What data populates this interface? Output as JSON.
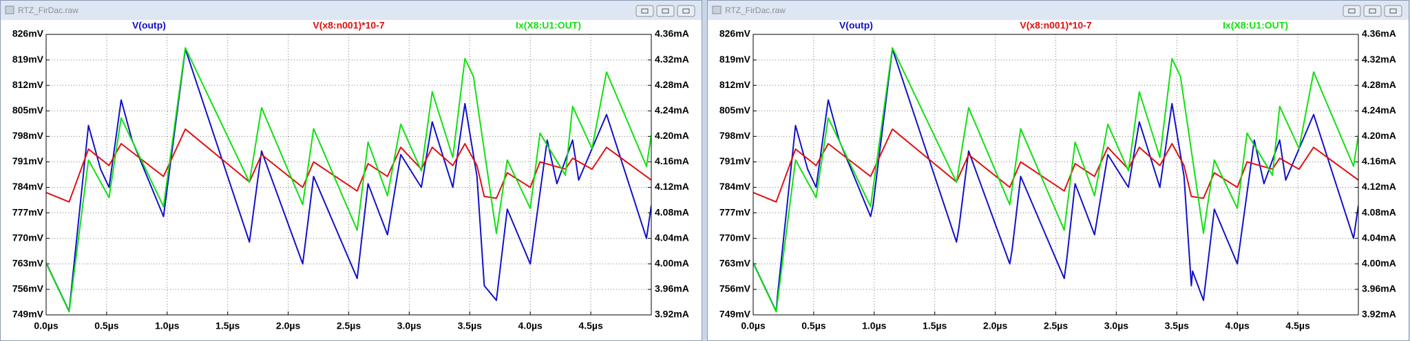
{
  "chart_data": [
    {
      "type": "line",
      "window_title": "RTZ_FirDac.raw",
      "xlim": [
        0,
        5
      ],
      "ylim": [
        749,
        826
      ],
      "y2lim": [
        3.92,
        4.36
      ],
      "xticks": [
        {
          "value": 0,
          "label": "0.0µs"
        },
        {
          "value": 0.5,
          "label": "0.5µs"
        },
        {
          "value": 1,
          "label": "1.0µs"
        },
        {
          "value": 1.5,
          "label": "1.5µs"
        },
        {
          "value": 2,
          "label": "2.0µs"
        },
        {
          "value": 2.5,
          "label": "2.5µs"
        },
        {
          "value": 3,
          "label": "3.0µs"
        },
        {
          "value": 3.5,
          "label": "3.5µs"
        },
        {
          "value": 4,
          "label": "4.0µs"
        },
        {
          "value": 4.5,
          "label": "4.5µs"
        }
      ],
      "yticks": [
        {
          "value": 749,
          "label": "749mV"
        },
        {
          "value": 756,
          "label": "756mV"
        },
        {
          "value": 763,
          "label": "763mV"
        },
        {
          "value": 770,
          "label": "770mV"
        },
        {
          "value": 777,
          "label": "777mV"
        },
        {
          "value": 784,
          "label": "784mV"
        },
        {
          "value": 791,
          "label": "791mV"
        },
        {
          "value": 798,
          "label": "798mV"
        },
        {
          "value": 805,
          "label": "805mV"
        },
        {
          "value": 812,
          "label": "812mV"
        },
        {
          "value": 819,
          "label": "819mV"
        },
        {
          "value": 826,
          "label": "826mV"
        }
      ],
      "y2ticks": [
        {
          "value": 3.92,
          "label": "3.92mA"
        },
        {
          "value": 3.96,
          "label": "3.96mA"
        },
        {
          "value": 4.0,
          "label": "4.00mA"
        },
        {
          "value": 4.04,
          "label": "4.04mA"
        },
        {
          "value": 4.08,
          "label": "4.08mA"
        },
        {
          "value": 4.12,
          "label": "4.12mA"
        },
        {
          "value": 4.16,
          "label": "4.16mA"
        },
        {
          "value": 4.2,
          "label": "4.20mA"
        },
        {
          "value": 4.24,
          "label": "4.24mA"
        },
        {
          "value": 4.28,
          "label": "4.28mA"
        },
        {
          "value": 4.32,
          "label": "4.32mA"
        },
        {
          "value": 4.36,
          "label": "4.36mA"
        }
      ],
      "grid": true,
      "series": [
        {
          "name": "V(outp)",
          "color": "#1010cc",
          "x": [
            0,
            0.19,
            0.35,
            0.45,
            0.52,
            0.62,
            0.71,
            0.97,
            1.15,
            1.68,
            1.78,
            2.12,
            2.21,
            2.57,
            2.66,
            2.82,
            2.93,
            3.1,
            3.19,
            3.36,
            3.46,
            3.56,
            3.62,
            3.72,
            3.81,
            4.0,
            4.14,
            4.22,
            4.35,
            4.4,
            4.63,
            4.96,
            5.0
          ],
          "values": [
            763.3,
            750,
            801,
            789,
            784,
            808,
            797,
            776,
            822,
            769,
            794,
            763,
            787,
            759,
            785,
            771,
            793,
            784,
            802,
            784,
            807,
            787,
            757,
            753,
            778,
            763,
            797,
            785,
            797,
            786,
            804,
            770,
            779
          ]
        },
        {
          "name": "V(x8:n001)*10-7",
          "color": "#e01010",
          "x": [
            0,
            0.19,
            0.35,
            0.52,
            0.62,
            0.97,
            1.15,
            1.68,
            1.78,
            2.12,
            2.21,
            2.57,
            2.66,
            2.82,
            2.93,
            3.1,
            3.19,
            3.36,
            3.46,
            3.56,
            3.62,
            3.72,
            3.81,
            4.0,
            4.08,
            4.29,
            4.35,
            4.51,
            4.63,
            5.0
          ],
          "values": [
            782.6,
            780,
            794.5,
            790,
            796,
            787,
            800,
            785.5,
            793,
            784,
            791,
            783,
            790.5,
            787,
            795,
            789,
            795,
            790,
            796,
            790,
            781.5,
            781,
            788,
            784,
            791,
            789,
            792,
            789,
            795,
            786
          ]
        },
        {
          "name": "Ix(X8:U1:OUT)",
          "color": "#10e010",
          "axis": "y2",
          "x": [
            0,
            0.19,
            0.35,
            0.52,
            0.62,
            0.97,
            1.15,
            1.68,
            1.78,
            2.12,
            2.21,
            2.57,
            2.66,
            2.82,
            2.93,
            3.1,
            3.19,
            3.36,
            3.46,
            3.53,
            3.72,
            3.81,
            4.0,
            4.08,
            4.29,
            4.35,
            4.51,
            4.63,
            4.96,
            5.0
          ],
          "values": [
            4.001,
            3.925,
            4.163,
            4.104,
            4.229,
            4.09,
            4.339,
            4.128,
            4.245,
            4.093,
            4.212,
            4.053,
            4.191,
            4.107,
            4.219,
            4.146,
            4.27,
            4.167,
            4.322,
            4.294,
            4.048,
            4.163,
            4.087,
            4.205,
            4.139,
            4.247,
            4.181,
            4.301,
            4.153,
            4.202
          ]
        }
      ]
    },
    {
      "type": "line",
      "window_title": "RTZ_FirDac.raw",
      "xlim": [
        0,
        5
      ],
      "ylim": [
        749,
        826
      ],
      "y2lim": [
        3.92,
        4.36
      ],
      "xticks": [
        {
          "value": 0,
          "label": "0.0µs"
        },
        {
          "value": 0.5,
          "label": "0.5µs"
        },
        {
          "value": 1,
          "label": "1.0µs"
        },
        {
          "value": 1.5,
          "label": "1.5µs"
        },
        {
          "value": 2,
          "label": "2.0µs"
        },
        {
          "value": 2.5,
          "label": "2.5µs"
        },
        {
          "value": 3,
          "label": "3.0µs"
        },
        {
          "value": 3.5,
          "label": "3.5µs"
        },
        {
          "value": 4,
          "label": "4.0µs"
        },
        {
          "value": 4.5,
          "label": "4.5µs"
        }
      ],
      "yticks": [
        {
          "value": 749,
          "label": "749mV"
        },
        {
          "value": 756,
          "label": "756mV"
        },
        {
          "value": 763,
          "label": "763mV"
        },
        {
          "value": 770,
          "label": "770mV"
        },
        {
          "value": 777,
          "label": "777mV"
        },
        {
          "value": 784,
          "label": "784mV"
        },
        {
          "value": 791,
          "label": "791mV"
        },
        {
          "value": 798,
          "label": "798mV"
        },
        {
          "value": 805,
          "label": "805mV"
        },
        {
          "value": 812,
          "label": "812mV"
        },
        {
          "value": 819,
          "label": "819mV"
        },
        {
          "value": 826,
          "label": "826mV"
        }
      ],
      "y2ticks": [
        {
          "value": 3.92,
          "label": "3.92mA"
        },
        {
          "value": 3.96,
          "label": "3.96mA"
        },
        {
          "value": 4.0,
          "label": "4.00mA"
        },
        {
          "value": 4.04,
          "label": "4.04mA"
        },
        {
          "value": 4.08,
          "label": "4.08mA"
        },
        {
          "value": 4.12,
          "label": "4.12mA"
        },
        {
          "value": 4.16,
          "label": "4.16mA"
        },
        {
          "value": 4.2,
          "label": "4.20mA"
        },
        {
          "value": 4.24,
          "label": "4.24mA"
        },
        {
          "value": 4.28,
          "label": "4.28mA"
        },
        {
          "value": 4.32,
          "label": "4.32mA"
        },
        {
          "value": 4.36,
          "label": "4.36mA"
        }
      ],
      "grid": true,
      "series": [
        {
          "name": "V(outp)",
          "color": "#1010cc",
          "x": [
            0,
            0.19,
            0.2,
            0.35,
            0.45,
            0.52,
            0.62,
            0.71,
            0.97,
            0.99,
            1.15,
            1.68,
            1.7,
            1.78,
            2.12,
            2.14,
            2.21,
            2.57,
            2.59,
            2.66,
            2.82,
            2.93,
            3.1,
            3.19,
            3.36,
            3.46,
            3.56,
            3.62,
            3.63,
            3.72,
            3.81,
            4.0,
            4.14,
            4.22,
            4.35,
            4.4,
            4.63,
            4.96,
            5.0
          ],
          "values": [
            763.3,
            750,
            754,
            801,
            789,
            784,
            808,
            797,
            776,
            779,
            822,
            769,
            773,
            794,
            763,
            767,
            787,
            759,
            764,
            785,
            771,
            793,
            784,
            802,
            784,
            807,
            787,
            757,
            761,
            753,
            778,
            763,
            797,
            785,
            797,
            786,
            804,
            770,
            779
          ]
        },
        {
          "name": "V(x8:n001)*10-7",
          "color": "#e01010",
          "x": [
            0,
            0.19,
            0.35,
            0.52,
            0.62,
            0.97,
            1.15,
            1.68,
            1.78,
            2.12,
            2.21,
            2.57,
            2.66,
            2.82,
            2.93,
            3.1,
            3.19,
            3.36,
            3.46,
            3.56,
            3.62,
            3.72,
            3.81,
            4.0,
            4.08,
            4.29,
            4.35,
            4.51,
            4.63,
            5.0
          ],
          "values": [
            782.6,
            780,
            794.5,
            790,
            796,
            787,
            800,
            785.5,
            793,
            784,
            791,
            783,
            790.5,
            787,
            795,
            789,
            795,
            790,
            796,
            790,
            781.5,
            781,
            788,
            784,
            791,
            789,
            792,
            789,
            795,
            786
          ]
        },
        {
          "name": "Ix(X8:U1:OUT)",
          "color": "#10e010",
          "axis": "y2",
          "x": [
            0,
            0.19,
            0.35,
            0.52,
            0.62,
            0.97,
            1.15,
            1.68,
            1.78,
            2.12,
            2.21,
            2.57,
            2.66,
            2.82,
            2.93,
            3.1,
            3.19,
            3.36,
            3.46,
            3.53,
            3.72,
            3.81,
            4.0,
            4.08,
            4.29,
            4.35,
            4.51,
            4.63,
            4.96,
            5.0
          ],
          "values": [
            4.001,
            3.925,
            4.163,
            4.104,
            4.229,
            4.09,
            4.339,
            4.128,
            4.245,
            4.093,
            4.212,
            4.053,
            4.191,
            4.107,
            4.219,
            4.146,
            4.27,
            4.167,
            4.322,
            4.294,
            4.048,
            4.163,
            4.087,
            4.205,
            4.139,
            4.247,
            4.181,
            4.301,
            4.153,
            4.202
          ]
        }
      ]
    }
  ]
}
